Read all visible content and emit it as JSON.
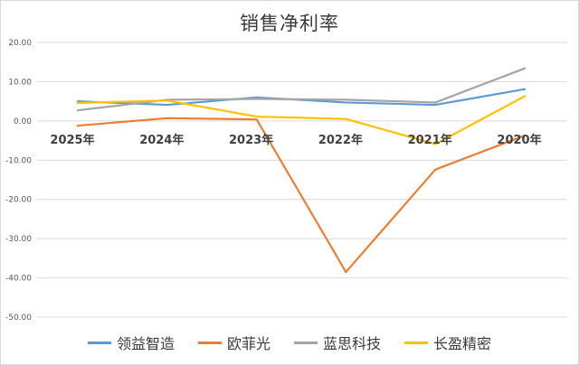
{
  "chart_data": {
    "type": "line",
    "title": "销售净利率",
    "xlabel": "",
    "ylabel": "",
    "categories": [
      "2025年",
      "2024年",
      "2023年",
      "2022年",
      "2021年",
      "2020年"
    ],
    "ylim": [
      -50,
      20
    ],
    "yticks": [
      "20.00",
      "10.00",
      "0.00",
      "-10.00",
      "-20.00",
      "-30.00",
      "-40.00",
      "-50.00"
    ],
    "grid": true,
    "legend_position": "bottom",
    "series": [
      {
        "name": "领益智造",
        "color": "#5b9bd5",
        "values": [
          5.0,
          4.1,
          6.0,
          4.7,
          4.1,
          8.1
        ]
      },
      {
        "name": "欧菲光",
        "color": "#ed7d31",
        "values": [
          -1.2,
          0.7,
          0.4,
          -38.5,
          -12.4,
          -3.7
        ]
      },
      {
        "name": "蓝思科技",
        "color": "#a5a5a5",
        "values": [
          2.7,
          5.4,
          5.6,
          5.4,
          4.7,
          13.4
        ]
      },
      {
        "name": "长盈精密",
        "color": "#ffc000",
        "values": [
          4.6,
          5.2,
          1.1,
          0.5,
          -5.9,
          6.3
        ]
      }
    ]
  }
}
